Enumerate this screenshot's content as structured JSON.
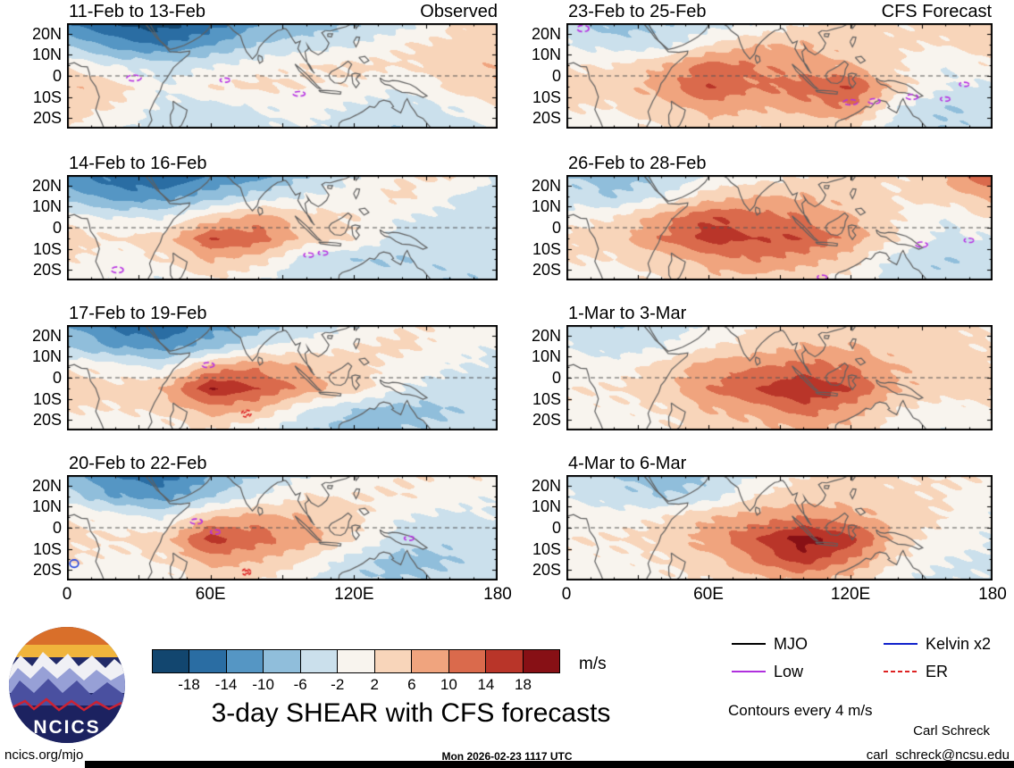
{
  "columns": {
    "left": "Observed",
    "right": "CFS Forecast"
  },
  "axes": {
    "y_ticks": [
      "20N",
      "10N",
      "0",
      "10S",
      "20S"
    ],
    "x_ticks": [
      "0",
      "60E",
      "120E",
      "180"
    ]
  },
  "colorbar": {
    "levels": [
      -18,
      -14,
      -10,
      -6,
      -2,
      2,
      6,
      10,
      14,
      18
    ],
    "colors": [
      "#12466f",
      "#2a6da3",
      "#5596c4",
      "#90bedb",
      "#cbe0ec",
      "#f8f4ee",
      "#f8d5ba",
      "#f0a47e",
      "#da6a4c",
      "#b93529",
      "#871015"
    ],
    "unit": "m/s"
  },
  "legend": {
    "items": [
      {
        "label": "MJO",
        "color": "#000000",
        "dash": "solid"
      },
      {
        "label": "Kelvin x2",
        "color": "#1122cc",
        "dash": "solid"
      },
      {
        "label": "Low",
        "color": "#b030dd",
        "dash": "solid"
      },
      {
        "label": "ER",
        "color": "#dd2222",
        "dash": "dashed"
      }
    ],
    "note": "Contours every 4 m/s"
  },
  "title": "3-day SHEAR with CFS forecasts",
  "footer": {
    "site": "ncics.org/mjo",
    "timestamp": "Mon 2026-02-23 1117 UTC",
    "email": "carl_schreck@ncsu.edu",
    "author": "Carl Schreck"
  },
  "logo": {
    "text": "NCICS"
  },
  "chart_data": {
    "type": "heatmap",
    "units": "m/s",
    "note": "3-day vertical wind shear anomalies (m/s), observed and CFS forecast, 25S-25N, 0-180E; values estimated from shading at levels every 4 m/s",
    "lon": [
      0,
      20,
      40,
      60,
      80,
      100,
      120,
      140,
      160,
      180
    ],
    "lat": [
      25,
      15,
      5,
      -5,
      -15,
      -25
    ],
    "levels": [
      -18,
      -14,
      -10,
      -6,
      -2,
      2,
      6,
      10,
      14,
      18
    ],
    "panels": [
      {
        "title": "11-Feb to 13-Feb",
        "column": "Observed",
        "values": [
          [
            -14,
            -18,
            -20,
            -16,
            -10,
            -8,
            -6,
            -4,
            2,
            4
          ],
          [
            -6,
            -12,
            -14,
            -10,
            -6,
            -4,
            -2,
            2,
            3,
            4
          ],
          [
            2,
            -2,
            -4,
            -2,
            0,
            2,
            3,
            2,
            4,
            6
          ],
          [
            6,
            4,
            -2,
            2,
            3,
            2,
            1,
            -2,
            3,
            5
          ],
          [
            4,
            2,
            -3,
            -4,
            -2,
            0,
            -3,
            -4,
            -2,
            2
          ],
          [
            2,
            -2,
            -4,
            -5,
            -3,
            -2,
            -4,
            -6,
            -4,
            -2
          ]
        ],
        "overlays": [
          {
            "lon": 28,
            "lat": -1,
            "rx": 3,
            "ry": 1.4,
            "type": "low"
          },
          {
            "lon": 97,
            "lat": -8.5,
            "rx": 2.5,
            "ry": 1.1,
            "type": "low"
          },
          {
            "lon": 66,
            "lat": -2,
            "rx": 2,
            "ry": 1,
            "type": "low"
          }
        ]
      },
      {
        "title": "14-Feb to 16-Feb",
        "column": "Observed",
        "values": [
          [
            -12,
            -16,
            -18,
            -14,
            -12,
            -6,
            -2,
            2,
            3,
            -2
          ],
          [
            -8,
            -12,
            -12,
            -8,
            -4,
            -2,
            0,
            3,
            -2,
            -4
          ],
          [
            0,
            -2,
            -2,
            4,
            8,
            4,
            2,
            -2,
            -3,
            -4
          ],
          [
            4,
            2,
            4,
            14,
            12,
            4,
            2,
            -4,
            -4,
            -3
          ],
          [
            2,
            0,
            2,
            6,
            4,
            -4,
            -6,
            -6,
            -5,
            -4
          ],
          [
            0,
            -2,
            -2,
            2,
            -2,
            -6,
            -4,
            -4,
            -6,
            -5
          ]
        ],
        "overlays": [
          {
            "lon": 21,
            "lat": -20,
            "rx": 2.5,
            "ry": 1.4,
            "type": "low"
          },
          {
            "lon": 101,
            "lat": -13,
            "rx": 2,
            "ry": 1,
            "type": "low"
          },
          {
            "lon": 107,
            "lat": -12,
            "rx": 2,
            "ry": 1,
            "type": "low"
          }
        ]
      },
      {
        "title": "17-Feb to 19-Feb",
        "column": "Observed",
        "values": [
          [
            -10,
            -16,
            -18,
            -12,
            -8,
            -4,
            -2,
            2,
            2,
            0
          ],
          [
            -6,
            -10,
            -12,
            -8,
            -2,
            0,
            2,
            3,
            0,
            -2
          ],
          [
            2,
            0,
            -2,
            8,
            10,
            6,
            4,
            0,
            -2,
            -3
          ],
          [
            4,
            3,
            6,
            18,
            14,
            8,
            4,
            -2,
            -4,
            -4
          ],
          [
            2,
            2,
            3,
            8,
            6,
            -2,
            -6,
            -8,
            -6,
            -4
          ],
          [
            0,
            -2,
            0,
            2,
            -2,
            -6,
            -8,
            -6,
            -5,
            -4
          ]
        ],
        "overlays": [
          {
            "lon": 59,
            "lat": 6,
            "rx": 2.5,
            "ry": 1.2,
            "type": "low"
          },
          {
            "lon": 75,
            "lat": -17,
            "rx": 2,
            "ry": 1.6,
            "type": "er"
          },
          {
            "lon": 75,
            "lat": -17,
            "rx": 1,
            "ry": 0.8,
            "type": "er"
          }
        ]
      },
      {
        "title": "20-Feb to 22-Feb",
        "column": "Observed",
        "values": [
          [
            -8,
            -14,
            -16,
            -10,
            -6,
            -2,
            0,
            2,
            2,
            2
          ],
          [
            -4,
            -10,
            -12,
            -6,
            -2,
            2,
            2,
            2,
            0,
            -2
          ],
          [
            2,
            0,
            -2,
            6,
            8,
            6,
            3,
            -2,
            -3,
            -2
          ],
          [
            3,
            2,
            4,
            16,
            12,
            8,
            2,
            -4,
            -5,
            -4
          ],
          [
            2,
            1,
            2,
            8,
            6,
            2,
            -4,
            -8,
            -6,
            -4
          ],
          [
            0,
            -1,
            0,
            3,
            2,
            -2,
            -6,
            -6,
            -5,
            -3
          ]
        ],
        "overlays": [
          {
            "lon": 54,
            "lat": 3,
            "rx": 2.5,
            "ry": 1.2,
            "type": "low"
          },
          {
            "lon": 62,
            "lat": -2,
            "rx": 2,
            "ry": 1,
            "type": "low"
          },
          {
            "lon": 3,
            "lat": -17,
            "rx": 1.8,
            "ry": 1.8,
            "type": "kelvin"
          },
          {
            "lon": 75,
            "lat": -21,
            "rx": 1.8,
            "ry": 1.5,
            "type": "er"
          },
          {
            "lon": 75,
            "lat": -21,
            "rx": 0.9,
            "ry": 0.7,
            "type": "er"
          },
          {
            "lon": 143,
            "lat": -5,
            "rx": 2,
            "ry": 1,
            "type": "low"
          }
        ]
      },
      {
        "title": "23-Feb to 25-Feb",
        "column": "CFS Forecast",
        "values": [
          [
            -4,
            -8,
            -6,
            -4,
            -2,
            2,
            3,
            2,
            4,
            6
          ],
          [
            -2,
            -4,
            -4,
            2,
            6,
            6,
            4,
            3,
            2,
            4
          ],
          [
            2,
            2,
            6,
            12,
            10,
            8,
            6,
            2,
            -2,
            2
          ],
          [
            4,
            4,
            8,
            14,
            10,
            12,
            14,
            4,
            -2,
            -3
          ],
          [
            2,
            2,
            4,
            8,
            6,
            8,
            10,
            -2,
            -6,
            -5
          ],
          [
            0,
            0,
            2,
            4,
            2,
            2,
            2,
            -4,
            -6,
            -4
          ]
        ],
        "overlays": [
          {
            "lon": 7,
            "lat": 22.5,
            "rx": 2.5,
            "ry": 1.5,
            "type": "low"
          },
          {
            "lon": 120,
            "lat": -12.5,
            "rx": 3,
            "ry": 1.3,
            "type": "low"
          },
          {
            "lon": 130,
            "lat": -12,
            "rx": 2.5,
            "ry": 1.2,
            "type": "low"
          },
          {
            "lon": 146,
            "lat": -10,
            "rx": 2.5,
            "ry": 1.2,
            "type": "low"
          },
          {
            "lon": 160,
            "lat": -11,
            "rx": 2,
            "ry": 1,
            "type": "low"
          },
          {
            "lon": 168,
            "lat": -4,
            "rx": 2,
            "ry": 1,
            "type": "low"
          }
        ]
      },
      {
        "title": "26-Feb to 28-Feb",
        "column": "CFS Forecast",
        "values": [
          [
            -6,
            -8,
            -6,
            -2,
            0,
            2,
            3,
            2,
            6,
            14
          ],
          [
            -4,
            -6,
            -2,
            4,
            6,
            6,
            4,
            2,
            4,
            8
          ],
          [
            0,
            2,
            8,
            14,
            12,
            10,
            6,
            2,
            -2,
            2
          ],
          [
            3,
            4,
            10,
            16,
            14,
            14,
            8,
            2,
            -3,
            -2
          ],
          [
            2,
            2,
            4,
            8,
            10,
            8,
            4,
            -4,
            -6,
            -4
          ],
          [
            0,
            0,
            2,
            4,
            4,
            2,
            0,
            -4,
            -5,
            -3
          ]
        ],
        "overlays": [
          {
            "lon": 150,
            "lat": -8,
            "rx": 2.5,
            "ry": 1.2,
            "type": "low"
          },
          {
            "lon": 170,
            "lat": -6,
            "rx": 2,
            "ry": 1,
            "type": "low"
          },
          {
            "lon": 108,
            "lat": -23.5,
            "rx": 2,
            "ry": 1,
            "type": "low"
          }
        ]
      },
      {
        "title": "1-Mar to 3-Mar",
        "column": "CFS Forecast",
        "values": [
          [
            -4,
            -6,
            -4,
            -2,
            2,
            3,
            4,
            4,
            3,
            2
          ],
          [
            -2,
            -4,
            -2,
            2,
            4,
            6,
            6,
            4,
            3,
            2
          ],
          [
            0,
            0,
            4,
            8,
            10,
            12,
            10,
            6,
            4,
            3
          ],
          [
            2,
            2,
            4,
            10,
            14,
            18,
            14,
            6,
            4,
            3
          ],
          [
            1,
            1,
            2,
            6,
            8,
            12,
            8,
            2,
            0,
            2
          ],
          [
            0,
            0,
            1,
            3,
            4,
            6,
            4,
            0,
            -2,
            0
          ]
        ],
        "overlays": []
      },
      {
        "title": "4-Mar to 6-Mar",
        "column": "CFS Forecast",
        "values": [
          [
            -2,
            -6,
            -8,
            -6,
            -2,
            2,
            3,
            2,
            2,
            2
          ],
          [
            -2,
            -4,
            -6,
            -4,
            2,
            4,
            4,
            3,
            2,
            0
          ],
          [
            0,
            0,
            2,
            6,
            8,
            10,
            8,
            4,
            2,
            -2
          ],
          [
            2,
            2,
            3,
            8,
            14,
            20,
            16,
            4,
            0,
            -2
          ],
          [
            1,
            1,
            2,
            5,
            10,
            16,
            10,
            2,
            -2,
            -3
          ],
          [
            0,
            0,
            1,
            2,
            4,
            6,
            4,
            -2,
            -3,
            -2
          ]
        ],
        "overlays": []
      }
    ]
  }
}
